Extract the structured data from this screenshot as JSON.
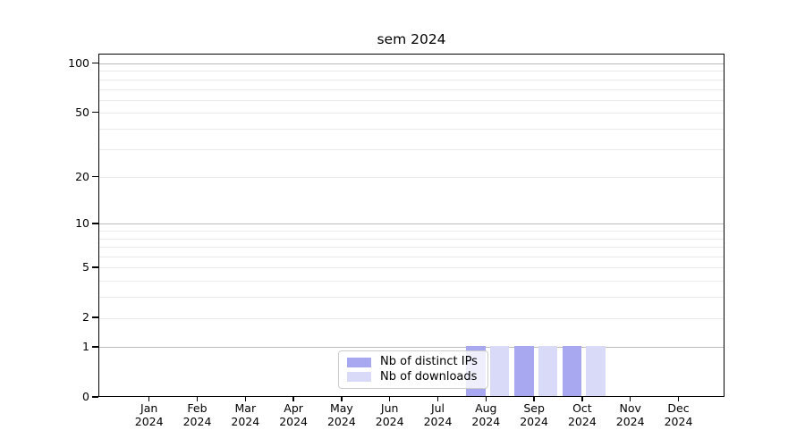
{
  "chart_data": {
    "type": "bar",
    "title": "sem 2024",
    "categories": [
      "Jan",
      "Feb",
      "Mar",
      "Apr",
      "May",
      "Jun",
      "Jul",
      "Aug",
      "Sep",
      "Oct",
      "Nov",
      "Dec"
    ],
    "year_label": "2024",
    "series": [
      {
        "name": "Nb of distinct IPs",
        "color": "#a8a8f0",
        "values": [
          0,
          0,
          0,
          0,
          0,
          0,
          0,
          1,
          1,
          1,
          0,
          0
        ]
      },
      {
        "name": "Nb of downloads",
        "color": "#d9d9f8",
        "values": [
          0,
          0,
          0,
          0,
          0,
          0,
          0,
          1,
          1,
          1,
          0,
          0
        ]
      }
    ],
    "yscale": "log1p",
    "ylim": [
      0,
      114
    ],
    "yticks": [
      0,
      1,
      2,
      5,
      10,
      20,
      50,
      100
    ],
    "gridlines": {
      "major": [
        1,
        10,
        100
      ],
      "minor": [
        2,
        3,
        4,
        5,
        6,
        7,
        8,
        9,
        20,
        30,
        40,
        50,
        60,
        70,
        80,
        90
      ]
    },
    "legend": {
      "location": "lower center"
    },
    "colors": {
      "spine": "#000000",
      "major_grid": "#bbbbbb",
      "minor_grid": "#e9e9e9"
    }
  }
}
